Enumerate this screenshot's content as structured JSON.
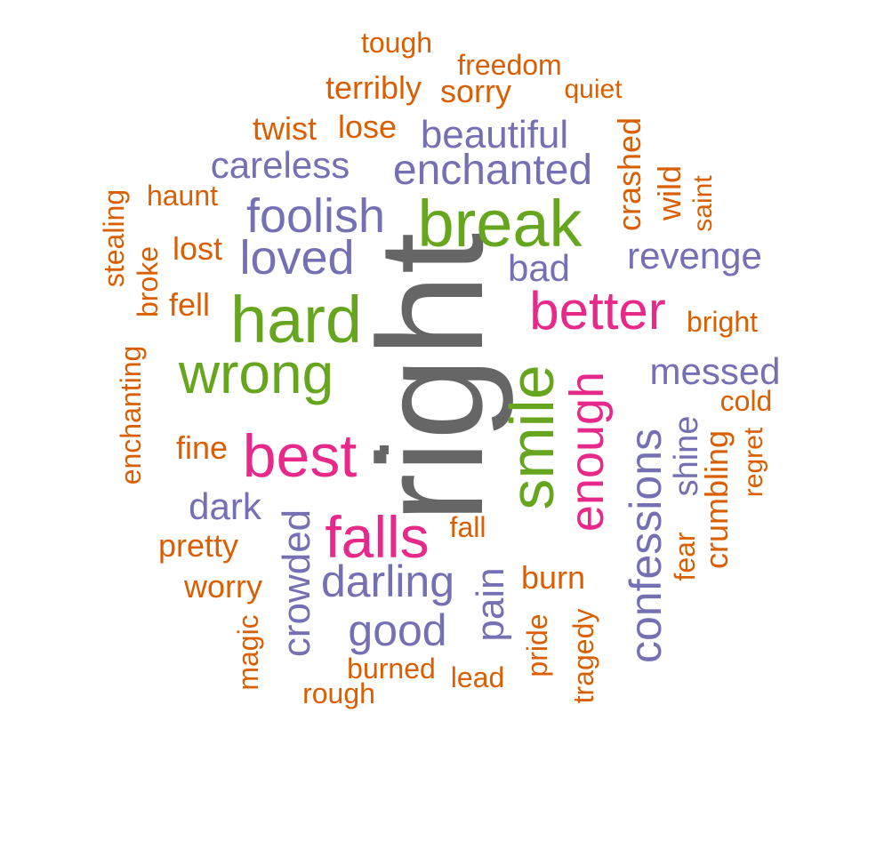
{
  "colors": {
    "orange": "#D95F02",
    "purple": "#7570B3",
    "green": "#66A61E",
    "pink": "#E7298A",
    "gray": "#666666"
  },
  "words": [
    {
      "text": "right",
      "color": "gray"
    },
    {
      "text": "break",
      "color": "green"
    },
    {
      "text": "hard",
      "color": "green"
    },
    {
      "text": "wrong",
      "color": "green"
    },
    {
      "text": "smile",
      "color": "green"
    },
    {
      "text": "best",
      "color": "pink"
    },
    {
      "text": "falls",
      "color": "pink"
    },
    {
      "text": "better",
      "color": "pink"
    },
    {
      "text": "enough",
      "color": "pink"
    },
    {
      "text": "foolish",
      "color": "purple"
    },
    {
      "text": "loved",
      "color": "purple"
    },
    {
      "text": "enchanted",
      "color": "purple"
    },
    {
      "text": "beautiful",
      "color": "purple"
    },
    {
      "text": "careless",
      "color": "purple"
    },
    {
      "text": "revenge",
      "color": "purple"
    },
    {
      "text": "bad",
      "color": "purple"
    },
    {
      "text": "messed",
      "color": "purple"
    },
    {
      "text": "confessions",
      "color": "purple"
    },
    {
      "text": "darling",
      "color": "purple"
    },
    {
      "text": "crowded",
      "color": "purple"
    },
    {
      "text": "good",
      "color": "purple"
    },
    {
      "text": "pain",
      "color": "purple"
    },
    {
      "text": "dark",
      "color": "purple"
    },
    {
      "text": "shine",
      "color": "purple"
    },
    {
      "text": "tough",
      "color": "orange"
    },
    {
      "text": "freedom",
      "color": "orange"
    },
    {
      "text": "terribly",
      "color": "orange"
    },
    {
      "text": "sorry",
      "color": "orange"
    },
    {
      "text": "quiet",
      "color": "orange"
    },
    {
      "text": "twist",
      "color": "orange"
    },
    {
      "text": "lose",
      "color": "orange"
    },
    {
      "text": "crashed",
      "color": "orange"
    },
    {
      "text": "wild",
      "color": "orange"
    },
    {
      "text": "saint",
      "color": "orange"
    },
    {
      "text": "haunt",
      "color": "orange"
    },
    {
      "text": "stealing",
      "color": "orange"
    },
    {
      "text": "lost",
      "color": "orange"
    },
    {
      "text": "broke",
      "color": "orange"
    },
    {
      "text": "fell",
      "color": "orange"
    },
    {
      "text": "bright",
      "color": "orange"
    },
    {
      "text": "cold",
      "color": "orange"
    },
    {
      "text": "enchanting",
      "color": "orange"
    },
    {
      "text": "fine",
      "color": "orange"
    },
    {
      "text": "regret",
      "color": "orange"
    },
    {
      "text": "crumbling",
      "color": "orange"
    },
    {
      "text": "fear",
      "color": "orange"
    },
    {
      "text": "fall",
      "color": "orange"
    },
    {
      "text": "pretty",
      "color": "orange"
    },
    {
      "text": "burn",
      "color": "orange"
    },
    {
      "text": "worry",
      "color": "orange"
    },
    {
      "text": "magic",
      "color": "orange"
    },
    {
      "text": "pride",
      "color": "orange"
    },
    {
      "text": "tragedy",
      "color": "orange"
    },
    {
      "text": "burned",
      "color": "orange"
    },
    {
      "text": "lead",
      "color": "orange"
    },
    {
      "text": "rough",
      "color": "orange"
    }
  ]
}
